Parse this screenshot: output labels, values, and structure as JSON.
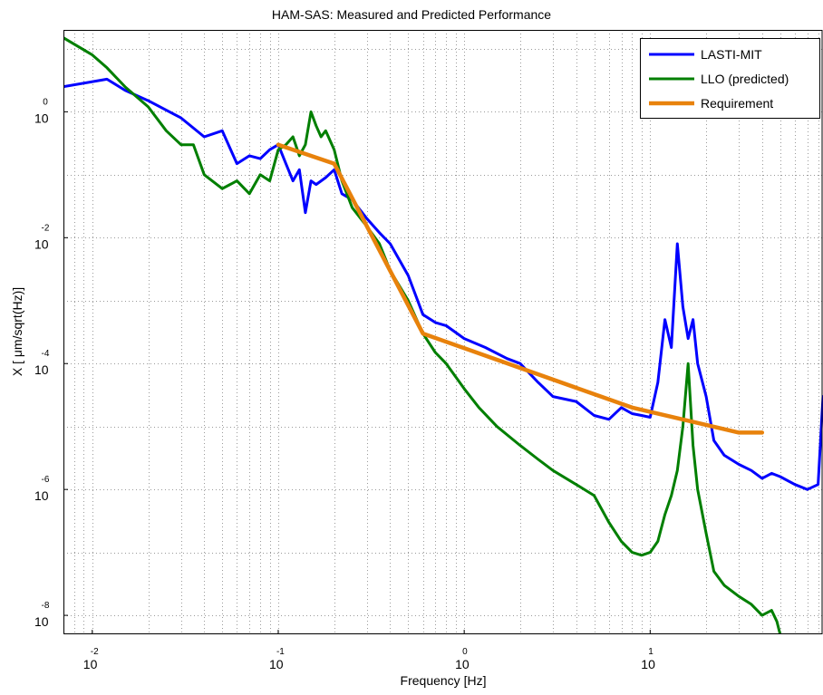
{
  "chart_data": {
    "type": "line",
    "title": "HAM-SAS: Measured and Predicted Performance",
    "xlabel": "Frequency [Hz]",
    "ylabel": "X [ μm/sqrt(Hz)]",
    "xscale": "log",
    "yscale": "log",
    "xlim": [
      0.007,
      85
    ],
    "ylim": [
      5e-09,
      20
    ],
    "grid": true,
    "legend_position": "top-right",
    "x_ticks": [
      {
        "base": "10",
        "exp": "-2",
        "value": 0.01
      },
      {
        "base": "10",
        "exp": "-1",
        "value": 0.1
      },
      {
        "base": "10",
        "exp": "0",
        "value": 1
      },
      {
        "base": "10",
        "exp": "1",
        "value": 10
      }
    ],
    "y_ticks": [
      {
        "base": "10",
        "exp": "0",
        "value": 1
      },
      {
        "base": "10",
        "exp": "-2",
        "value": 0.01
      },
      {
        "base": "10",
        "exp": "-4",
        "value": 0.0001
      },
      {
        "base": "10",
        "exp": "-6",
        "value": 1e-06
      },
      {
        "base": "10",
        "exp": "-8",
        "value": 1e-08
      }
    ],
    "series": [
      {
        "name": "LASTI-MIT",
        "color": "#0000ff",
        "x": [
          0.007,
          0.012,
          0.015,
          0.02,
          0.03,
          0.04,
          0.05,
          0.06,
          0.07,
          0.08,
          0.09,
          0.1,
          0.11,
          0.12,
          0.13,
          0.14,
          0.15,
          0.16,
          0.18,
          0.2,
          0.22,
          0.25,
          0.3,
          0.35,
          0.4,
          0.5,
          0.6,
          0.7,
          0.8,
          1,
          1.3,
          1.7,
          2,
          2.5,
          3,
          4,
          5,
          6,
          7,
          8,
          9,
          10,
          11,
          12,
          13,
          14,
          15,
          16,
          17,
          18,
          20,
          22,
          25,
          30,
          35,
          40,
          45,
          50,
          60,
          70,
          80,
          85
        ],
        "y": [
          2.5,
          3.3,
          2.2,
          1.5,
          0.8,
          0.4,
          0.5,
          0.15,
          0.2,
          0.18,
          0.25,
          0.3,
          0.15,
          0.08,
          0.12,
          0.025,
          0.08,
          0.07,
          0.09,
          0.12,
          0.05,
          0.04,
          0.02,
          0.012,
          0.008,
          0.0025,
          0.0006,
          0.00045,
          0.0004,
          0.00025,
          0.00018,
          0.00012,
          0.0001,
          5e-05,
          3e-05,
          2.5e-05,
          1.5e-05,
          1.3e-05,
          2e-05,
          1.6e-05,
          1.5e-05,
          1.4e-05,
          5e-05,
          0.0005,
          0.00018,
          0.008,
          0.0008,
          0.00025,
          0.0005,
          0.0001,
          3e-05,
          6e-06,
          3.5e-06,
          2.5e-06,
          2e-06,
          1.5e-06,
          1.8e-06,
          1.6e-06,
          1.2e-06,
          1e-06,
          1.2e-06,
          3e-05
        ]
      },
      {
        "name": "LLO (predicted)",
        "color": "#007f00",
        "x": [
          0.007,
          0.01,
          0.012,
          0.015,
          0.02,
          0.025,
          0.03,
          0.035,
          0.04,
          0.05,
          0.06,
          0.07,
          0.08,
          0.09,
          0.1,
          0.11,
          0.12,
          0.13,
          0.14,
          0.15,
          0.16,
          0.17,
          0.18,
          0.2,
          0.22,
          0.25,
          0.3,
          0.35,
          0.4,
          0.5,
          0.6,
          0.7,
          0.8,
          1,
          1.2,
          1.5,
          2,
          2.5,
          3,
          4,
          5,
          6,
          7,
          8,
          9,
          10,
          11,
          12,
          13,
          14,
          15,
          16,
          17,
          18,
          20,
          22,
          25,
          30,
          35,
          40,
          45,
          48,
          50
        ],
        "y": [
          15,
          8,
          5,
          2.5,
          1.2,
          0.5,
          0.3,
          0.3,
          0.1,
          0.06,
          0.08,
          0.05,
          0.1,
          0.08,
          0.25,
          0.3,
          0.4,
          0.2,
          0.3,
          1,
          0.6,
          0.4,
          0.5,
          0.25,
          0.08,
          0.03,
          0.015,
          0.008,
          0.003,
          0.001,
          0.0003,
          0.00015,
          0.0001,
          4e-05,
          2e-05,
          1e-05,
          5e-06,
          3e-06,
          2e-06,
          1.2e-06,
          8e-07,
          3e-07,
          1.5e-07,
          1e-07,
          9e-08,
          1e-07,
          1.5e-07,
          4e-07,
          8e-07,
          2e-06,
          1e-05,
          0.0001,
          5e-06,
          1e-06,
          2e-07,
          5e-08,
          3e-08,
          2e-08,
          1.5e-08,
          1e-08,
          1.2e-08,
          8e-09,
          5e-09
        ]
      },
      {
        "name": "Requirement",
        "color": "#e8820c",
        "x": [
          0.1,
          0.2,
          0.6,
          8,
          30,
          40
        ],
        "y": [
          0.3,
          0.15,
          0.0003,
          2e-05,
          8e-06,
          8e-06
        ]
      }
    ]
  }
}
